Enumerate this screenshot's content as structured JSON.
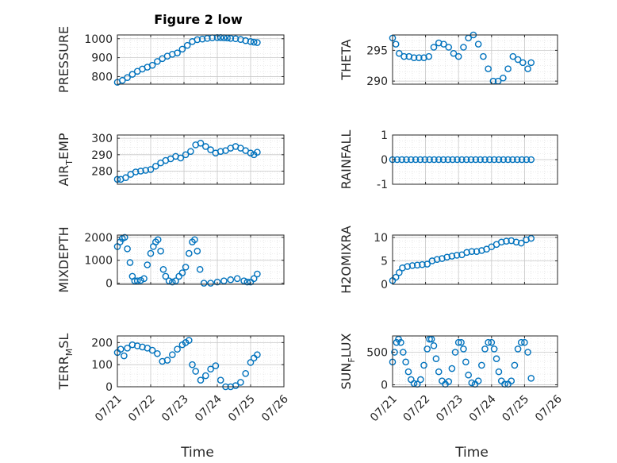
{
  "figure": {
    "title": "Figure 2 low",
    "marker_color": "#0072BD"
  },
  "chart_data": [
    {
      "type": "scatter",
      "title": "Figure 2 low",
      "ylabel": "PRESSURE",
      "ylabel_sub": "",
      "ylabel_tail": "",
      "xlabel": "",
      "xlim": [
        0,
        5
      ],
      "ylim": [
        760,
        1020
      ],
      "yticks": [
        800,
        900,
        1000
      ],
      "xticks": [
        0,
        1,
        2,
        3,
        4,
        5
      ],
      "xticklabels": [
        "",
        "",
        "",
        "",
        "",
        ""
      ],
      "grid": true,
      "x": [
        0,
        0.15,
        0.3,
        0.45,
        0.6,
        0.75,
        0.9,
        1.05,
        1.2,
        1.35,
        1.5,
        1.65,
        1.8,
        1.95,
        2.1,
        2.25,
        2.4,
        2.55,
        2.7,
        2.85,
        3.0,
        3.1,
        3.2,
        3.3,
        3.4,
        3.55,
        3.7,
        3.85,
        4.0,
        4.1,
        4.2
      ],
      "y": [
        770,
        780,
        795,
        812,
        828,
        840,
        850,
        860,
        880,
        895,
        908,
        918,
        925,
        945,
        965,
        985,
        995,
        998,
        1002,
        1005,
        1006,
        1006,
        1005,
        1004,
        1002,
        1000,
        996,
        990,
        985,
        982,
        980
      ]
    },
    {
      "type": "scatter",
      "ylabel": "THETA",
      "ylabel_sub": "",
      "ylabel_tail": "",
      "xlabel": "",
      "xlim": [
        0,
        5
      ],
      "ylim": [
        289.5,
        297.5
      ],
      "yticks": [
        290,
        295
      ],
      "xticks": [
        0,
        1,
        2,
        3,
        4,
        5
      ],
      "xticklabels": [
        "",
        "",
        "",
        "",
        "",
        ""
      ],
      "grid": true,
      "x": [
        0,
        0.1,
        0.2,
        0.35,
        0.5,
        0.65,
        0.8,
        0.95,
        1.1,
        1.25,
        1.4,
        1.55,
        1.7,
        1.85,
        2.0,
        2.15,
        2.3,
        2.45,
        2.6,
        2.75,
        2.9,
        3.05,
        3.2,
        3.35,
        3.5,
        3.65,
        3.8,
        3.95,
        4.1,
        4.2
      ],
      "y": [
        297,
        296,
        294.5,
        294,
        294,
        293.8,
        293.8,
        293.8,
        294,
        295.5,
        296.2,
        296,
        295.5,
        294.5,
        294,
        295.5,
        297,
        297.5,
        296,
        294,
        292,
        290,
        290,
        290.5,
        292,
        294,
        293.5,
        293,
        292,
        293
      ]
    },
    {
      "type": "scatter",
      "ylabel": "AIR",
      "ylabel_sub": "T",
      "ylabel_tail": "EMP",
      "xlabel": "",
      "xlim": [
        0,
        5
      ],
      "ylim": [
        272,
        302
      ],
      "yticks": [
        280,
        290,
        300
      ],
      "xticks": [
        0,
        1,
        2,
        3,
        4,
        5
      ],
      "xticklabels": [
        "",
        "",
        "",
        "",
        "",
        ""
      ],
      "grid": true,
      "x": [
        0,
        0.1,
        0.25,
        0.4,
        0.55,
        0.7,
        0.85,
        1.0,
        1.15,
        1.3,
        1.45,
        1.6,
        1.75,
        1.9,
        2.05,
        2.2,
        2.35,
        2.5,
        2.65,
        2.8,
        2.95,
        3.1,
        3.25,
        3.4,
        3.55,
        3.7,
        3.85,
        4.0,
        4.1,
        4.2
      ],
      "y": [
        275,
        275,
        276,
        278,
        279.5,
        280,
        280.5,
        281,
        283,
        285,
        286.5,
        287.5,
        289,
        288,
        290,
        292,
        296,
        297,
        295,
        293,
        291,
        292,
        292.5,
        294,
        295,
        294,
        292.5,
        291,
        290,
        291.5
      ]
    },
    {
      "type": "scatter",
      "ylabel": "RAINFALL",
      "ylabel_sub": "",
      "ylabel_tail": "",
      "xlabel": "",
      "xlim": [
        0,
        5
      ],
      "ylim": [
        -1,
        1
      ],
      "yticks": [
        -1,
        0,
        1
      ],
      "xticks": [
        0,
        1,
        2,
        3,
        4,
        5
      ],
      "xticklabels": [
        "",
        "",
        "",
        "",
        "",
        ""
      ],
      "grid": true,
      "x": [
        0,
        0.14,
        0.28,
        0.42,
        0.56,
        0.7,
        0.84,
        0.98,
        1.12,
        1.26,
        1.4,
        1.54,
        1.68,
        1.82,
        1.96,
        2.1,
        2.24,
        2.38,
        2.52,
        2.66,
        2.8,
        2.94,
        3.08,
        3.22,
        3.36,
        3.5,
        3.64,
        3.78,
        3.92,
        4.06,
        4.2
      ],
      "y": [
        0,
        0,
        0,
        0,
        0,
        0,
        0,
        0,
        0,
        0,
        0,
        0,
        0,
        0,
        0,
        0,
        0,
        0,
        0,
        0,
        0,
        0,
        0,
        0,
        0,
        0,
        0,
        0,
        0,
        0,
        0
      ]
    },
    {
      "type": "scatter",
      "ylabel": "MIXDEPTH",
      "ylabel_sub": "",
      "ylabel_tail": "",
      "xlabel": "",
      "xlim": [
        0,
        5
      ],
      "ylim": [
        -50,
        2100
      ],
      "yticks": [
        0,
        1000,
        2000
      ],
      "xticks": [
        0,
        1,
        2,
        3,
        4,
        5
      ],
      "xticklabels": [
        "",
        "",
        "",
        "",
        "",
        ""
      ],
      "grid": true,
      "x": [
        0,
        0.08,
        0.15,
        0.22,
        0.3,
        0.38,
        0.45,
        0.52,
        0.6,
        0.7,
        0.8,
        0.9,
        1.0,
        1.08,
        1.15,
        1.22,
        1.3,
        1.38,
        1.45,
        1.55,
        1.65,
        1.75,
        1.85,
        1.95,
        2.05,
        2.15,
        2.25,
        2.32,
        2.4,
        2.48,
        2.6,
        2.8,
        3.0,
        3.2,
        3.4,
        3.6,
        3.8,
        3.9,
        4.0,
        4.1,
        4.2
      ],
      "y": [
        1600,
        1800,
        1950,
        2000,
        1500,
        900,
        300,
        100,
        100,
        120,
        200,
        800,
        1300,
        1600,
        1800,
        1900,
        1400,
        600,
        300,
        100,
        50,
        100,
        300,
        450,
        700,
        1300,
        1800,
        1900,
        1400,
        600,
        0,
        0,
        50,
        100,
        150,
        200,
        100,
        50,
        50,
        200,
        400
      ]
    },
    {
      "type": "scatter",
      "ylabel": "H2OMIXRA",
      "ylabel_sub": "",
      "ylabel_tail": "",
      "xlabel": "",
      "xlim": [
        0,
        5
      ],
      "ylim": [
        0,
        10.5
      ],
      "yticks": [
        0,
        5,
        10
      ],
      "xticks": [
        0,
        1,
        2,
        3,
        4,
        5
      ],
      "xticklabels": [
        "",
        "",
        "",
        "",
        "",
        ""
      ],
      "grid": true,
      "x": [
        0,
        0.1,
        0.2,
        0.3,
        0.45,
        0.6,
        0.75,
        0.9,
        1.05,
        1.2,
        1.35,
        1.5,
        1.65,
        1.8,
        1.95,
        2.1,
        2.25,
        2.4,
        2.55,
        2.7,
        2.85,
        3.0,
        3.15,
        3.3,
        3.45,
        3.6,
        3.75,
        3.9,
        4.05,
        4.2
      ],
      "y": [
        0.8,
        1.5,
        2.5,
        3.5,
        3.8,
        4,
        4.1,
        4.2,
        4.3,
        5,
        5.3,
        5.5,
        5.8,
        6,
        6.2,
        6.3,
        6.8,
        7,
        7,
        7.2,
        7.5,
        8,
        8.5,
        9,
        9.2,
        9.3,
        9,
        8.8,
        9.5,
        9.8
      ]
    },
    {
      "type": "scatter",
      "ylabel": "TERR",
      "ylabel_sub": "M",
      "ylabel_tail": "SL",
      "xlabel": "Time",
      "xlim": [
        0,
        5
      ],
      "ylim": [
        0,
        230
      ],
      "yticks": [
        0,
        100,
        200
      ],
      "xticks": [
        0,
        1,
        2,
        3,
        4,
        5
      ],
      "xticklabels": [
        "07/21",
        "07/22",
        "07/23",
        "07/24",
        "07/25",
        "07/26"
      ],
      "grid": true,
      "x": [
        0,
        0.1,
        0.2,
        0.3,
        0.45,
        0.6,
        0.75,
        0.9,
        1.05,
        1.2,
        1.35,
        1.5,
        1.65,
        1.8,
        1.95,
        2.05,
        2.15,
        2.25,
        2.35,
        2.5,
        2.65,
        2.8,
        2.95,
        3.1,
        3.25,
        3.4,
        3.55,
        3.7,
        3.85,
        4.0,
        4.1,
        4.2
      ],
      "y": [
        155,
        170,
        140,
        175,
        190,
        185,
        180,
        175,
        165,
        150,
        115,
        120,
        145,
        170,
        190,
        200,
        210,
        100,
        70,
        30,
        50,
        80,
        95,
        30,
        0,
        0,
        5,
        20,
        60,
        110,
        130,
        145
      ]
    },
    {
      "type": "scatter",
      "ylabel": "SUN",
      "ylabel_sub": "F",
      "ylabel_tail": "LUX",
      "xlabel": "Time",
      "xlim": [
        0,
        5
      ],
      "ylim": [
        -30,
        750
      ],
      "yticks": [
        0,
        500
      ],
      "xticks": [
        0,
        1,
        2,
        3,
        4,
        5
      ],
      "xticklabels": [
        "07/21",
        "07/22",
        "07/23",
        "07/24",
        "07/25",
        "07/26"
      ],
      "grid": true,
      "x": [
        0,
        0.06,
        0.12,
        0.18,
        0.25,
        0.32,
        0.4,
        0.48,
        0.56,
        0.65,
        0.75,
        0.85,
        0.95,
        1.05,
        1.12,
        1.18,
        1.25,
        1.32,
        1.4,
        1.5,
        1.6,
        1.7,
        1.8,
        1.9,
        2.0,
        2.08,
        2.15,
        2.22,
        2.3,
        2.4,
        2.5,
        2.6,
        2.7,
        2.8,
        2.9,
        3.0,
        3.08,
        3.15,
        3.22,
        3.3,
        3.4,
        3.5,
        3.6,
        3.7,
        3.8,
        3.9,
        4.0,
        4.1,
        4.2
      ],
      "y": [
        350,
        500,
        650,
        700,
        650,
        500,
        350,
        200,
        80,
        20,
        10,
        80,
        300,
        550,
        700,
        700,
        600,
        400,
        200,
        60,
        10,
        50,
        250,
        500,
        650,
        650,
        550,
        350,
        150,
        30,
        10,
        60,
        300,
        550,
        650,
        650,
        550,
        400,
        200,
        60,
        10,
        10,
        60,
        300,
        550,
        650,
        650,
        500,
        100
      ]
    }
  ]
}
